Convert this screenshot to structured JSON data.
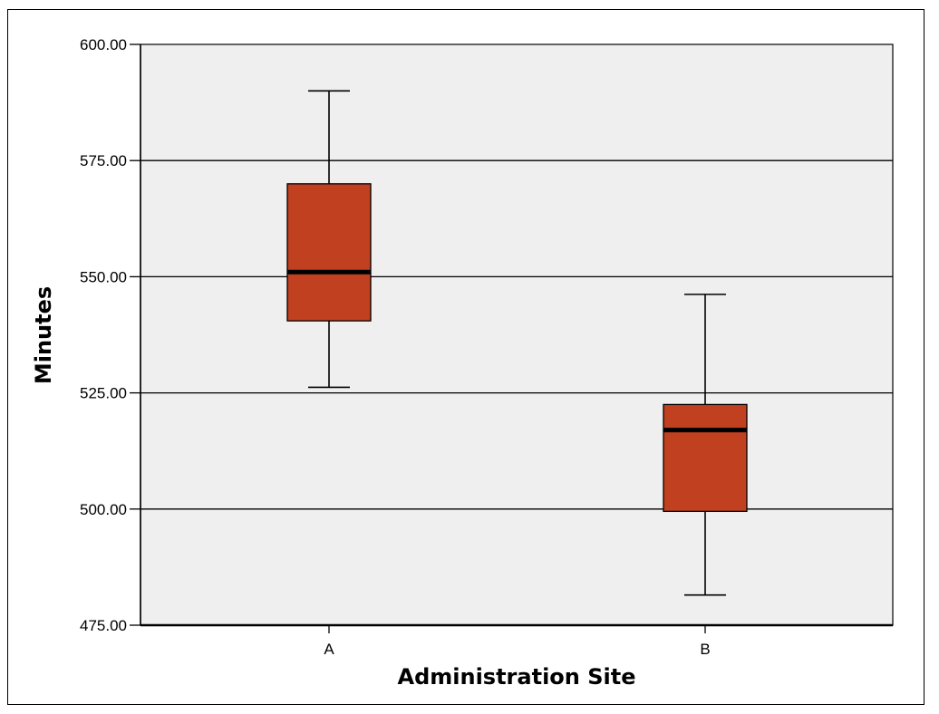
{
  "chart_data": {
    "type": "boxplot",
    "title": "",
    "xlabel": "Administration Site",
    "ylabel": "Minutes",
    "ylim": [
      475,
      600
    ],
    "yticks": [
      "475.00",
      "500.00",
      "525.00",
      "550.00",
      "575.00",
      "600.00"
    ],
    "ytick_values": [
      475,
      500,
      525,
      550,
      575,
      600
    ],
    "categories": [
      "A",
      "B"
    ],
    "boxes": [
      {
        "category": "A",
        "whisker_low": 526.2,
        "q1": 540.5,
        "median": 551.0,
        "q3": 570.0,
        "whisker_high": 590.0
      },
      {
        "category": "B",
        "whisker_low": 481.5,
        "q1": 499.5,
        "median": 517.0,
        "q3": 522.5,
        "whisker_high": 546.2
      }
    ],
    "grid": true,
    "colors": {
      "box_fill": "#C1401F",
      "plot_background": "#EFEFEF",
      "gridline": "#000000",
      "median_line": "#000000"
    }
  }
}
